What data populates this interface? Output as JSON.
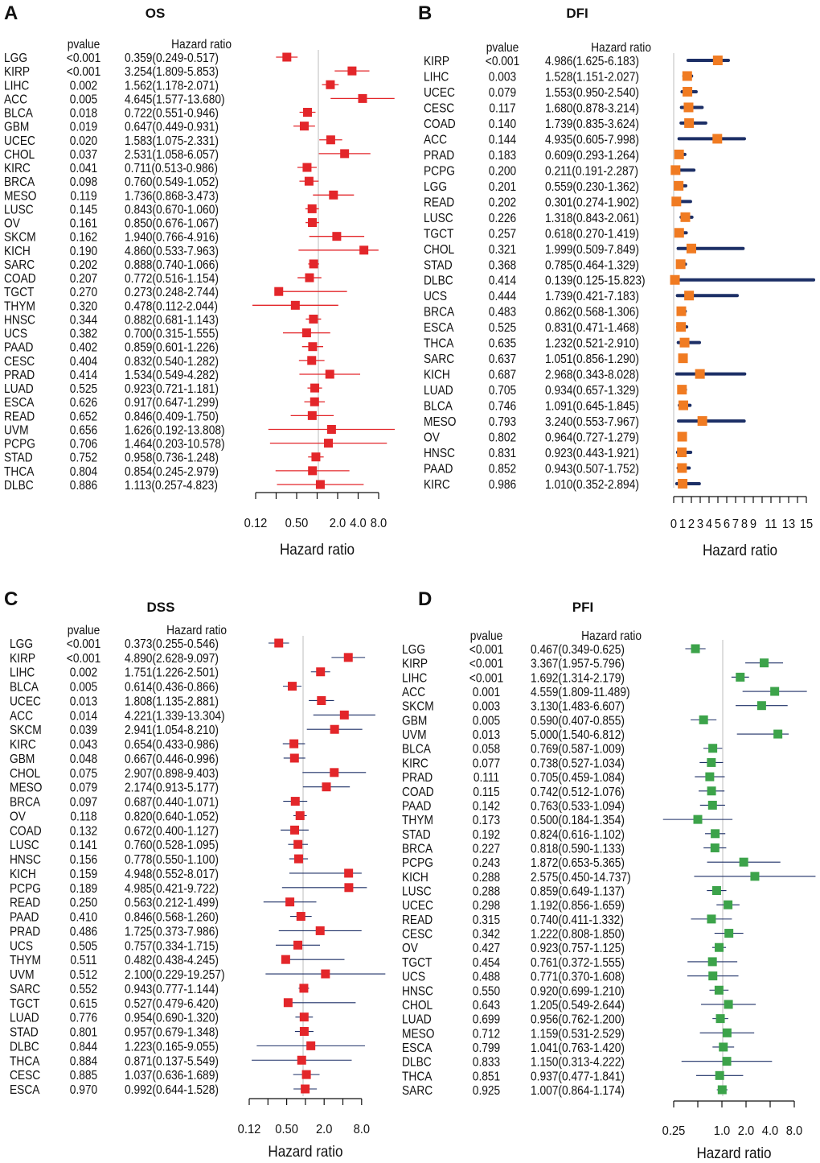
{
  "chart_data": [
    {
      "type": "forest",
      "letter": "A",
      "title": "OS",
      "col_pvalue": "pvalue",
      "col_hr": "Hazard ratio",
      "xlabel": "Hazard ratio",
      "scale": "log2",
      "tick_values": [
        0.125,
        0.5,
        2,
        4,
        8
      ],
      "tick_labels": [
        "0.12",
        "0.50",
        "2.0",
        "4.0",
        "8.0"
      ],
      "colors": {
        "square": "#e3262a",
        "ci": "#e3262a"
      },
      "rows": [
        [
          "LGG",
          "<0.001",
          "0.359(0.249-0.517)"
        ],
        [
          "KIRP",
          "<0.001",
          "3.254(1.809-5.853)"
        ],
        [
          "LIHC",
          "0.002",
          "1.562(1.178-2.071)"
        ],
        [
          "ACC",
          "0.005",
          "4.645(1.577-13.680)"
        ],
        [
          "BLCA",
          "0.018",
          "0.722(0.551-0.946)"
        ],
        [
          "GBM",
          "0.019",
          "0.647(0.449-0.931)"
        ],
        [
          "UCEC",
          "0.020",
          "1.583(1.075-2.331)"
        ],
        [
          "CHOL",
          "0.037",
          "2.531(1.058-6.057)"
        ],
        [
          "KIRC",
          "0.041",
          "0.711(0.513-0.986)"
        ],
        [
          "BRCA",
          "0.098",
          "0.760(0.549-1.052)"
        ],
        [
          "MESO",
          "0.119",
          "1.736(0.868-3.473)"
        ],
        [
          "LUSC",
          "0.145",
          "0.843(0.670-1.060)"
        ],
        [
          "OV",
          "0.161",
          "0.850(0.676-1.067)"
        ],
        [
          "SKCM",
          "0.162",
          "1.940(0.766-4.916)"
        ],
        [
          "KICH",
          "0.190",
          "4.860(0.533-7.963)"
        ],
        [
          "SARC",
          "0.202",
          "0.888(0.740-1.066)"
        ],
        [
          "COAD",
          "0.207",
          "0.772(0.516-1.154)"
        ],
        [
          "TGCT",
          "0.270",
          "0.273(0.248-2.744)"
        ],
        [
          "THYM",
          "0.320",
          "0.478(0.112-2.044)"
        ],
        [
          "HNSC",
          "0.344",
          "0.882(0.681-1.143)"
        ],
        [
          "UCS",
          "0.382",
          "0.700(0.315-1.555)"
        ],
        [
          "PAAD",
          "0.402",
          "0.859(0.601-1.226)"
        ],
        [
          "CESC",
          "0.404",
          "0.832(0.540-1.282)"
        ],
        [
          "PRAD",
          "0.414",
          "1.534(0.549-4.282)"
        ],
        [
          "LUAD",
          "0.525",
          "0.923(0.721-1.181)"
        ],
        [
          "ESCA",
          "0.626",
          "0.917(0.647-1.299)"
        ],
        [
          "READ",
          "0.652",
          "0.846(0.409-1.750)"
        ],
        [
          "UVM",
          "0.656",
          "1.626(0.192-13.808)"
        ],
        [
          "PCPG",
          "0.706",
          "1.464(0.203-10.578)"
        ],
        [
          "STAD",
          "0.752",
          "0.958(0.736-1.248)"
        ],
        [
          "THCA",
          "0.804",
          "0.854(0.245-2.979)"
        ],
        [
          "DLBC",
          "0.886",
          "1.113(0.257-4.823)"
        ]
      ]
    },
    {
      "type": "forest",
      "letter": "B",
      "title": "DFI",
      "col_pvalue": "pvalue",
      "col_hr": "Hazard ratio",
      "xlabel": "Hazard ratio",
      "scale": "linear",
      "tick_values": [
        0,
        1,
        2,
        3,
        4,
        5,
        6,
        7,
        8,
        9,
        11,
        13,
        15
      ],
      "tick_labels": [
        "0",
        "1",
        "2",
        "3",
        "4",
        "5",
        "6",
        "7",
        "8",
        "9",
        "11",
        "13",
        "15"
      ],
      "colors": {
        "square": "#f07b22",
        "ci": "#1c2f66"
      },
      "rows": [
        [
          "KIRP",
          "<0.001",
          "4.986(1.625-6.183)"
        ],
        [
          "LIHC",
          "0.003",
          "1.528(1.151-2.027)"
        ],
        [
          "UCEC",
          "0.079",
          "1.553(0.950-2.540)"
        ],
        [
          "CESC",
          "0.117",
          "1.680(0.878-3.214)"
        ],
        [
          "COAD",
          "0.140",
          "1.739(0.835-3.624)"
        ],
        [
          "ACC",
          "0.144",
          "4.935(0.605-7.998)"
        ],
        [
          "PRAD",
          "0.183",
          "0.609(0.293-1.264)"
        ],
        [
          "PCPG",
          "0.200",
          "0.211(0.191-2.287)"
        ],
        [
          "LGG",
          "0.201",
          "0.559(0.230-1.362)"
        ],
        [
          "READ",
          "0.202",
          "0.301(0.274-1.902)"
        ],
        [
          "LUSC",
          "0.226",
          "1.318(0.843-2.061)"
        ],
        [
          "TGCT",
          "0.257",
          "0.618(0.270-1.419)"
        ],
        [
          "CHOL",
          "0.321",
          "1.999(0.509-7.849)"
        ],
        [
          "STAD",
          "0.368",
          "0.785(0.464-1.329)"
        ],
        [
          "DLBC",
          "0.414",
          "0.139(0.125-15.823)"
        ],
        [
          "UCS",
          "0.444",
          "1.739(0.421-7.183)"
        ],
        [
          "BRCA",
          "0.483",
          "0.862(0.568-1.306)"
        ],
        [
          "ESCA",
          "0.525",
          "0.831(0.471-1.468)"
        ],
        [
          "THCA",
          "0.635",
          "1.232(0.521-2.910)"
        ],
        [
          "SARC",
          "0.637",
          "1.051(0.856-1.290)"
        ],
        [
          "KICH",
          "0.687",
          "2.968(0.343-8.028)"
        ],
        [
          "LUAD",
          "0.705",
          "0.934(0.657-1.329)"
        ],
        [
          "BLCA",
          "0.746",
          "1.091(0.645-1.845)"
        ],
        [
          "MESO",
          "0.793",
          "3.240(0.553-7.967)"
        ],
        [
          "OV",
          "0.802",
          "0.964(0.727-1.279)"
        ],
        [
          "HNSC",
          "0.831",
          "0.923(0.443-1.921)"
        ],
        [
          "PAAD",
          "0.852",
          "0.943(0.507-1.752)"
        ],
        [
          "KIRC",
          "0.986",
          "1.010(0.352-2.894)"
        ]
      ]
    },
    {
      "type": "forest",
      "letter": "C",
      "title": "DSS",
      "col_pvalue": "pvalue",
      "col_hr": "Hazard ratio",
      "xlabel": "Hazard ratio",
      "scale": "log2",
      "tick_values": [
        0.125,
        0.5,
        2,
        8
      ],
      "tick_labels": [
        "0.12",
        "0.50",
        "2.0",
        "8.0"
      ],
      "colors": {
        "square": "#e3262a",
        "ci": "#1c2f66"
      },
      "rows": [
        [
          "LGG",
          "<0.001",
          "0.373(0.255-0.546)"
        ],
        [
          "KIRP",
          "<0.001",
          "4.890(2.628-9.097)"
        ],
        [
          "LIHC",
          "0.002",
          "1.751(1.226-2.501)"
        ],
        [
          "BLCA",
          "0.005",
          "0.614(0.436-0.866)"
        ],
        [
          "UCEC",
          "0.013",
          "1.808(1.135-2.881)"
        ],
        [
          "ACC",
          "0.014",
          "4.221(1.339-13.304)"
        ],
        [
          "SKCM",
          "0.039",
          "2.941(1.054-8.210)"
        ],
        [
          "KIRC",
          "0.043",
          "0.654(0.433-0.986)"
        ],
        [
          "GBM",
          "0.048",
          "0.667(0.446-0.996)"
        ],
        [
          "CHOL",
          "0.075",
          "2.907(0.898-9.403)"
        ],
        [
          "MESO",
          "0.079",
          "2.174(0.913-5.177)"
        ],
        [
          "BRCA",
          "0.097",
          "0.687(0.440-1.071)"
        ],
        [
          "OV",
          "0.118",
          "0.820(0.640-1.052)"
        ],
        [
          "COAD",
          "0.132",
          "0.672(0.400-1.127)"
        ],
        [
          "LUSC",
          "0.141",
          "0.760(0.528-1.095)"
        ],
        [
          "HNSC",
          "0.156",
          "0.778(0.550-1.100)"
        ],
        [
          "KICH",
          "0.159",
          "4.948(0.552-8.017)"
        ],
        [
          "PCPG",
          "0.189",
          "4.985(0.421-9.722)"
        ],
        [
          "READ",
          "0.250",
          "0.563(0.212-1.499)"
        ],
        [
          "PAAD",
          "0.410",
          "0.846(0.568-1.260)"
        ],
        [
          "PRAD",
          "0.486",
          "1.725(0.373-7.986)"
        ],
        [
          "UCS",
          "0.505",
          "0.757(0.334-1.715)"
        ],
        [
          "THYM",
          "0.511",
          "0.482(0.438-4.245)"
        ],
        [
          "UVM",
          "0.512",
          "2.100(0.229-19.257)"
        ],
        [
          "SARC",
          "0.552",
          "0.943(0.777-1.144)"
        ],
        [
          "TGCT",
          "0.615",
          "0.527(0.479-6.420)"
        ],
        [
          "LUAD",
          "0.776",
          "0.954(0.690-1.320)"
        ],
        [
          "STAD",
          "0.801",
          "0.957(0.679-1.348)"
        ],
        [
          "DLBC",
          "0.844",
          "1.223(0.165-9.055)"
        ],
        [
          "THCA",
          "0.884",
          "0.871(0.137-5.549)"
        ],
        [
          "CESC",
          "0.885",
          "1.037(0.636-1.689)"
        ],
        [
          "ESCA",
          "0.970",
          "0.992(0.644-1.528)"
        ]
      ]
    },
    {
      "type": "forest",
      "letter": "D",
      "title": "PFI",
      "col_pvalue": "pvalue",
      "col_hr": "Hazard ratio",
      "xlabel": "Hazard ratio",
      "scale": "log2",
      "tick_values": [
        0.25,
        1,
        2,
        4,
        8
      ],
      "tick_labels": [
        "0.25",
        "1.0",
        "2.0",
        "4.0",
        "8.0"
      ],
      "colors": {
        "square": "#3ca34a",
        "ci": "#1c2f66"
      },
      "rows": [
        [
          "LGG",
          "<0.001",
          "0.467(0.349-0.625)"
        ],
        [
          "KIRP",
          "<0.001",
          "3.367(1.957-5.796)"
        ],
        [
          "LIHC",
          "<0.001",
          "1.692(1.314-2.179)"
        ],
        [
          "ACC",
          "0.001",
          "4.559(1.809-11.489)"
        ],
        [
          "SKCM",
          "0.003",
          "3.130(1.483-6.607)"
        ],
        [
          "GBM",
          "0.005",
          "0.590(0.407-0.855)"
        ],
        [
          "UVM",
          "0.013",
          "5.000(1.540-6.812)"
        ],
        [
          "BLCA",
          "0.058",
          "0.769(0.587-1.009)"
        ],
        [
          "KIRC",
          "0.077",
          "0.738(0.527-1.034)"
        ],
        [
          "PRAD",
          "0.111",
          "0.705(0.459-1.084)"
        ],
        [
          "COAD",
          "0.115",
          "0.742(0.512-1.076)"
        ],
        [
          "PAAD",
          "0.142",
          "0.763(0.533-1.094)"
        ],
        [
          "THYM",
          "0.173",
          "0.500(0.184-1.354)"
        ],
        [
          "STAD",
          "0.192",
          "0.824(0.616-1.102)"
        ],
        [
          "BRCA",
          "0.227",
          "0.818(0.590-1.133)"
        ],
        [
          "PCPG",
          "0.243",
          "1.872(0.653-5.365)"
        ],
        [
          "KICH",
          "0.288",
          "2.575(0.450-14.737)"
        ],
        [
          "LUSC",
          "0.288",
          "0.859(0.649-1.137)"
        ],
        [
          "UCEC",
          "0.298",
          "1.192(0.856-1.659)"
        ],
        [
          "READ",
          "0.315",
          "0.740(0.411-1.332)"
        ],
        [
          "CESC",
          "0.342",
          "1.222(0.808-1.850)"
        ],
        [
          "OV",
          "0.427",
          "0.923(0.757-1.125)"
        ],
        [
          "TGCT",
          "0.454",
          "0.761(0.372-1.555)"
        ],
        [
          "UCS",
          "0.488",
          "0.771(0.370-1.608)"
        ],
        [
          "HNSC",
          "0.550",
          "0.920(0.699-1.210)"
        ],
        [
          "CHOL",
          "0.643",
          "1.205(0.549-2.644)"
        ],
        [
          "LUAD",
          "0.699",
          "0.956(0.762-1.200)"
        ],
        [
          "MESO",
          "0.712",
          "1.159(0.531-2.529)"
        ],
        [
          "ESCA",
          "0.799",
          "1.041(0.763-1.420)"
        ],
        [
          "DLBC",
          "0.833",
          "1.150(0.313-4.222)"
        ],
        [
          "THCA",
          "0.851",
          "0.937(0.477-1.841)"
        ],
        [
          "SARC",
          "0.925",
          "1.007(0.864-1.174)"
        ]
      ]
    }
  ]
}
